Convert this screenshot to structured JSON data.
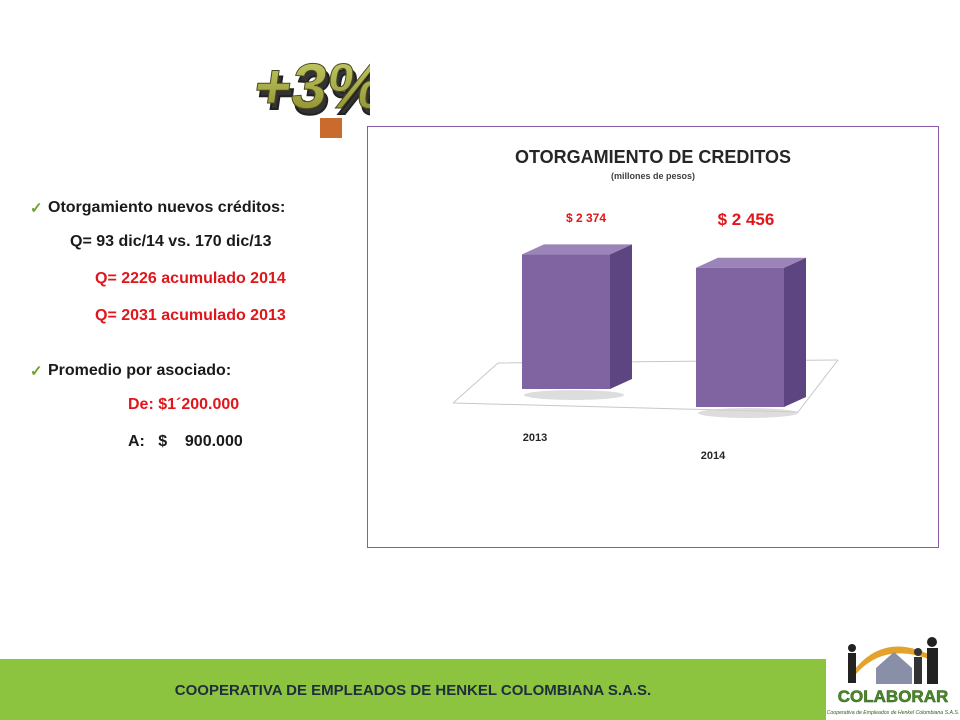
{
  "headline": {
    "text": "+3%"
  },
  "bullets": {
    "item1_title": "Otorgamiento nuevos créditos:",
    "item1_line1": "Q= 93 dic/14 vs. 170 dic/13",
    "item1_line2": "Q= 2226 acumulado  2014",
    "item1_line3": "Q= 2031 acumulado  2013",
    "item2_title": "Promedio por asociado:",
    "item2_line1": "De: $1´200.000",
    "item2_line2": "A:   $    900.000"
  },
  "chart_data": {
    "type": "bar",
    "title": "OTORGAMIENTO DE CREDITOS",
    "subtitle": "(millones de pesos)",
    "categories": [
      "2013",
      "2014"
    ],
    "values": [
      2374,
      2456
    ],
    "value_labels": [
      "$ 2 374",
      "$ 2 456"
    ],
    "grid": false,
    "bar_color": "#8064a2",
    "label_color": "#e0161b"
  },
  "footer": {
    "text": "COOPERATIVA DE EMPLEADOS DE HENKEL COLOMBIANA S.A.S."
  },
  "logo": {
    "name": "COLABORAR",
    "tagline": "Cooperativa de Empleados de Henkel Colombiana S.A.S."
  },
  "colors": {
    "accent_green": "#8cc43f",
    "accent_red": "#e0161b",
    "bar_purple": "#8064a2"
  }
}
